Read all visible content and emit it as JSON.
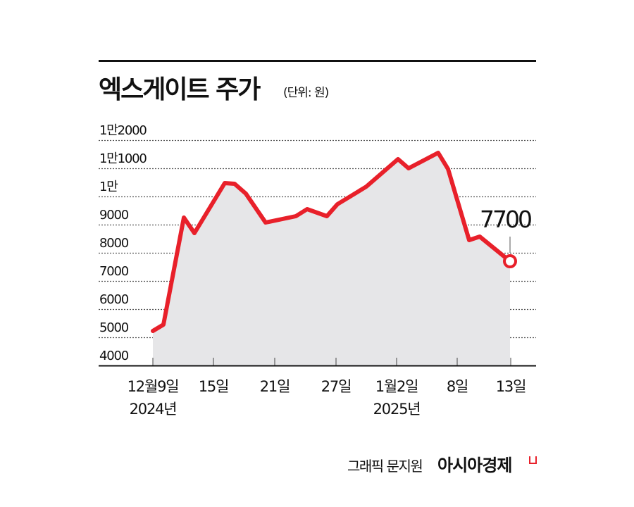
{
  "header": {
    "title": "엑스게이트 주가",
    "unit": "(단위: 원)"
  },
  "chart_data": {
    "type": "area",
    "title": "엑스게이트 주가",
    "subtitle": "(단위: 원)",
    "xlabel": "",
    "ylabel": "원",
    "ylim": [
      4000,
      12000
    ],
    "grid": true,
    "y_ticks": [
      "1만2000",
      "1만1000",
      "1만",
      "9000",
      "8000",
      "7000",
      "6000",
      "5000",
      "4000"
    ],
    "x_ticks": [
      {
        "label": "12월9일",
        "sub": "2024년"
      },
      {
        "label": "15일",
        "sub": ""
      },
      {
        "label": "21일",
        "sub": ""
      },
      {
        "label": "27일",
        "sub": ""
      },
      {
        "label": "1월2일",
        "sub": "2025년"
      },
      {
        "label": "8일",
        "sub": ""
      },
      {
        "label": "13일",
        "sub": ""
      }
    ],
    "series": [
      {
        "name": "엑스게이트 주가",
        "color": "#e8202a",
        "fill": "#e6e6e8",
        "points": [
          {
            "x": 217,
            "value": 5225
          },
          {
            "x": 232,
            "value": 5450
          },
          {
            "x": 261,
            "value": 9250
          },
          {
            "x": 276,
            "value": 8700
          },
          {
            "x": 319,
            "value": 10475
          },
          {
            "x": 333,
            "value": 10450
          },
          {
            "x": 349,
            "value": 10100
          },
          {
            "x": 377,
            "value": 9075
          },
          {
            "x": 420,
            "value": 9300
          },
          {
            "x": 436,
            "value": 9550
          },
          {
            "x": 464,
            "value": 9300
          },
          {
            "x": 479,
            "value": 9725
          },
          {
            "x": 520,
            "value": 10350
          },
          {
            "x": 565,
            "value": 11325
          },
          {
            "x": 580,
            "value": 11000
          },
          {
            "x": 622,
            "value": 11550
          },
          {
            "x": 636,
            "value": 10975
          },
          {
            "x": 666,
            "value": 8450
          },
          {
            "x": 681,
            "value": 8575
          },
          {
            "x": 724,
            "value": 7700
          }
        ]
      }
    ],
    "annotations": [
      {
        "label": "7700",
        "target": "last-point"
      }
    ]
  },
  "footer": {
    "credit": "그래픽 문지원",
    "brand": "아시아경제"
  },
  "colors": {
    "line": "#e8202a",
    "fill": "#e6e6e8",
    "grid": "#555555",
    "text": "#111111"
  }
}
